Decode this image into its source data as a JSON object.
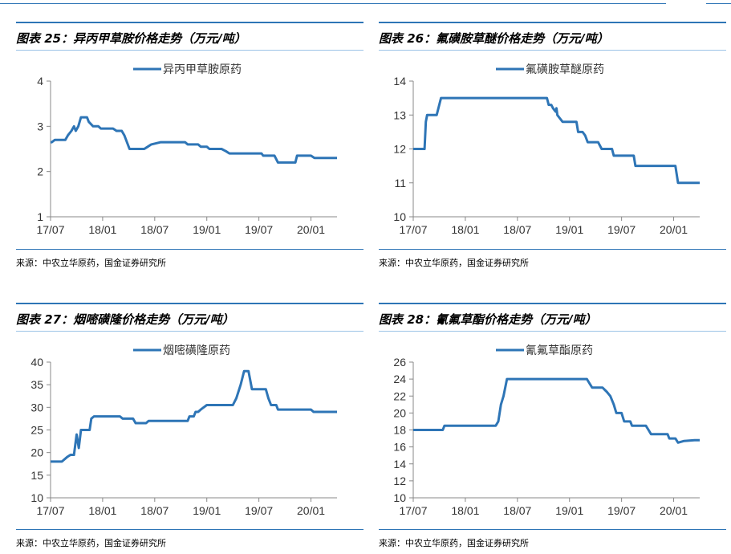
{
  "panels": [
    {
      "title": "图表 25：异丙甲草胺价格走势（万元/吨）",
      "source": "来源：中农立华原药，国金证券研究所",
      "chart_data": {
        "type": "line",
        "legend": "异丙甲草胺原药",
        "legend_position": "top-center",
        "color": "#2e75b6",
        "ylim": [
          1,
          4
        ],
        "yticks": [
          1,
          2,
          3,
          4
        ],
        "xlim": [
          0,
          33
        ],
        "xticks": [
          {
            "x": 0,
            "label": "17/07"
          },
          {
            "x": 6,
            "label": "18/01"
          },
          {
            "x": 12,
            "label": "18/07"
          },
          {
            "x": 18,
            "label": "19/01"
          },
          {
            "x": 24,
            "label": "19/07"
          },
          {
            "x": 30,
            "label": "20/01"
          }
        ],
        "points": [
          [
            0,
            2.65
          ],
          [
            0.15,
            2.65
          ],
          [
            0.5,
            2.7
          ],
          [
            1.7,
            2.7
          ],
          [
            2.0,
            2.8
          ],
          [
            2.4,
            2.9
          ],
          [
            2.7,
            3.0
          ],
          [
            2.9,
            2.9
          ],
          [
            3.2,
            3.0
          ],
          [
            3.5,
            3.2
          ],
          [
            4.2,
            3.2
          ],
          [
            4.4,
            3.1
          ],
          [
            4.9,
            3.0
          ],
          [
            5.5,
            3.0
          ],
          [
            5.8,
            2.95
          ],
          [
            7.2,
            2.95
          ],
          [
            7.6,
            2.9
          ],
          [
            8.2,
            2.9
          ],
          [
            8.5,
            2.8
          ],
          [
            9.1,
            2.5
          ],
          [
            10.8,
            2.5
          ],
          [
            11.2,
            2.55
          ],
          [
            11.6,
            2.6
          ],
          [
            12.7,
            2.65
          ],
          [
            15.5,
            2.65
          ],
          [
            15.8,
            2.6
          ],
          [
            17.0,
            2.6
          ],
          [
            17.3,
            2.55
          ],
          [
            18.0,
            2.55
          ],
          [
            18.3,
            2.5
          ],
          [
            19.7,
            2.5
          ],
          [
            20.2,
            2.45
          ],
          [
            20.6,
            2.4
          ],
          [
            24.3,
            2.4
          ],
          [
            24.5,
            2.35
          ],
          [
            25.8,
            2.35
          ],
          [
            26.2,
            2.2
          ],
          [
            28.2,
            2.2
          ],
          [
            28.4,
            2.35
          ],
          [
            30.0,
            2.35
          ],
          [
            30.4,
            2.3
          ],
          [
            33.0,
            2.3
          ]
        ]
      }
    },
    {
      "title": "图表 26：氟磺胺草醚价格走势（万元/吨）",
      "source": "来源：中农立华原药，国金证券研究所",
      "chart_data": {
        "type": "line",
        "legend": "氟磺胺草醚原药",
        "legend_position": "top-center",
        "color": "#2e75b6",
        "ylim": [
          10,
          14
        ],
        "yticks": [
          10,
          11,
          12,
          13,
          14
        ],
        "xlim": [
          0,
          33
        ],
        "xticks": [
          {
            "x": 0,
            "label": "17/07"
          },
          {
            "x": 6,
            "label": "18/01"
          },
          {
            "x": 12,
            "label": "18/07"
          },
          {
            "x": 18,
            "label": "19/01"
          },
          {
            "x": 24,
            "label": "19/07"
          },
          {
            "x": 30,
            "label": "20/01"
          }
        ],
        "points": [
          [
            0,
            12.0
          ],
          [
            1.3,
            12.0
          ],
          [
            1.45,
            12.8
          ],
          [
            1.6,
            13.0
          ],
          [
            2.7,
            13.0
          ],
          [
            3.2,
            13.5
          ],
          [
            15.4,
            13.5
          ],
          [
            15.6,
            13.3
          ],
          [
            15.9,
            13.3
          ],
          [
            16.1,
            13.2
          ],
          [
            16.4,
            13.1
          ],
          [
            16.5,
            13.2
          ],
          [
            16.6,
            13.0
          ],
          [
            16.9,
            12.9
          ],
          [
            17.2,
            12.8
          ],
          [
            18.8,
            12.8
          ],
          [
            19.0,
            12.5
          ],
          [
            19.5,
            12.5
          ],
          [
            19.8,
            12.4
          ],
          [
            20.1,
            12.2
          ],
          [
            21.3,
            12.2
          ],
          [
            21.7,
            12.0
          ],
          [
            22.9,
            12.0
          ],
          [
            23.1,
            11.8
          ],
          [
            25.4,
            11.8
          ],
          [
            25.6,
            11.5
          ],
          [
            30.2,
            11.5
          ],
          [
            30.5,
            11.0
          ],
          [
            33.0,
            11.0
          ]
        ]
      }
    },
    {
      "title": "图表 27：烟嘧磺隆价格走势（万元/吨）",
      "source": "来源：中农立华原药，国金证券研究所",
      "chart_data": {
        "type": "line",
        "legend": "烟嘧磺隆原药",
        "legend_position": "top-center",
        "color": "#2e75b6",
        "ylim": [
          10,
          40
        ],
        "yticks": [
          10,
          15,
          20,
          25,
          30,
          35,
          40
        ],
        "xlim": [
          0,
          33
        ],
        "xticks": [
          {
            "x": 0,
            "label": "17/07"
          },
          {
            "x": 6,
            "label": "18/01"
          },
          {
            "x": 12,
            "label": "18/07"
          },
          {
            "x": 18,
            "label": "19/01"
          },
          {
            "x": 24,
            "label": "19/07"
          },
          {
            "x": 30,
            "label": "20/01"
          }
        ],
        "points": [
          [
            0,
            18
          ],
          [
            1.3,
            18
          ],
          [
            1.6,
            18.5
          ],
          [
            1.9,
            19
          ],
          [
            2.3,
            19.5
          ],
          [
            2.7,
            19.5
          ],
          [
            3.0,
            24
          ],
          [
            3.25,
            21
          ],
          [
            3.5,
            25
          ],
          [
            4.5,
            25
          ],
          [
            4.7,
            27.5
          ],
          [
            5.0,
            28
          ],
          [
            8.0,
            28
          ],
          [
            8.3,
            27.5
          ],
          [
            9.5,
            27.5
          ],
          [
            9.8,
            26.5
          ],
          [
            11.0,
            26.5
          ],
          [
            11.3,
            27
          ],
          [
            15.8,
            27
          ],
          [
            16.0,
            28
          ],
          [
            16.5,
            28
          ],
          [
            16.7,
            29
          ],
          [
            17.0,
            29
          ],
          [
            17.3,
            29.5
          ],
          [
            18.0,
            30.5
          ],
          [
            21.0,
            30.5
          ],
          [
            21.4,
            32
          ],
          [
            21.9,
            35
          ],
          [
            22.3,
            38
          ],
          [
            22.8,
            38
          ],
          [
            23.2,
            34
          ],
          [
            24.8,
            34
          ],
          [
            25.1,
            32
          ],
          [
            25.4,
            30.5
          ],
          [
            26.0,
            30.5
          ],
          [
            26.2,
            29.5
          ],
          [
            30.0,
            29.5
          ],
          [
            30.3,
            29
          ],
          [
            33.0,
            29
          ]
        ]
      }
    },
    {
      "title": "图表 28：氰氟草酯价格走势（万元/吨）",
      "source": "来源：中农立华原药，国金证券研究所",
      "chart_data": {
        "type": "line",
        "legend": "氰氟草酯原药",
        "legend_position": "top-center",
        "color": "#2e75b6",
        "ylim": [
          10,
          26
        ],
        "yticks": [
          10,
          12,
          14,
          16,
          18,
          20,
          22,
          24,
          26
        ],
        "xlim": [
          0,
          33
        ],
        "xticks": [
          {
            "x": 0,
            "label": "17/07"
          },
          {
            "x": 6,
            "label": "18/01"
          },
          {
            "x": 12,
            "label": "18/07"
          },
          {
            "x": 18,
            "label": "19/01"
          },
          {
            "x": 24,
            "label": "19/07"
          },
          {
            "x": 30,
            "label": "20/01"
          }
        ],
        "points": [
          [
            0,
            18
          ],
          [
            3.4,
            18
          ],
          [
            3.6,
            18.5
          ],
          [
            9.5,
            18.5
          ],
          [
            9.8,
            19
          ],
          [
            10.1,
            21
          ],
          [
            10.4,
            22
          ],
          [
            10.8,
            24
          ],
          [
            20.0,
            24
          ],
          [
            20.3,
            23.5
          ],
          [
            20.6,
            23
          ],
          [
            21.8,
            23
          ],
          [
            22.3,
            22.5
          ],
          [
            22.7,
            22
          ],
          [
            23.1,
            21
          ],
          [
            23.4,
            20
          ],
          [
            24.0,
            20
          ],
          [
            24.3,
            19
          ],
          [
            25.0,
            19
          ],
          [
            25.2,
            18.5
          ],
          [
            26.8,
            18.5
          ],
          [
            27.1,
            18
          ],
          [
            27.4,
            17.5
          ],
          [
            29.3,
            17.5
          ],
          [
            29.5,
            17
          ],
          [
            30.2,
            17
          ],
          [
            30.5,
            16.5
          ],
          [
            31.2,
            16.7
          ],
          [
            32.4,
            16.8
          ],
          [
            33.0,
            16.8
          ]
        ]
      }
    }
  ]
}
